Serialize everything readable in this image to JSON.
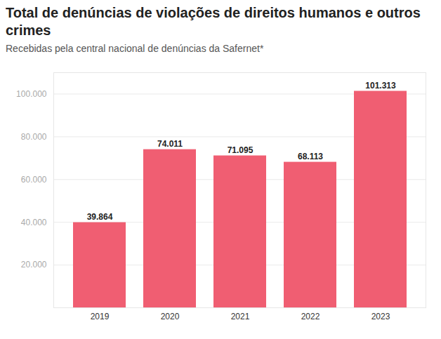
{
  "chart_data": {
    "type": "bar",
    "title": "Total de denúncias de violações de direitos humanos e outros crimes",
    "subtitle": "Recebidas pela central nacional de denúncias da Safernet*",
    "categories": [
      "2019",
      "2020",
      "2021",
      "2022",
      "2023"
    ],
    "values": [
      39864,
      74011,
      71095,
      68113,
      101313
    ],
    "value_labels": [
      "39.864",
      "74.011",
      "71.095",
      "68.113",
      "101.313"
    ],
    "color": "#f05e72",
    "ylim": [
      0,
      110000
    ],
    "yticks": [
      {
        "value": 20000,
        "label": "20.000"
      },
      {
        "value": 40000,
        "label": "40.000"
      },
      {
        "value": 60000,
        "label": "60.000"
      },
      {
        "value": 80000,
        "label": "80.000"
      },
      {
        "value": 100000,
        "label": "100.000"
      }
    ],
    "grid": true,
    "data_labels": true
  }
}
